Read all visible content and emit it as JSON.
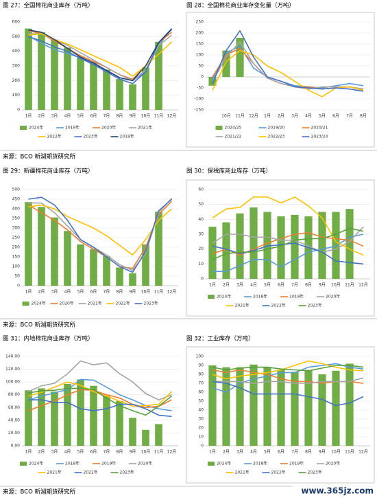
{
  "chart_data": [
    {
      "type": "combo",
      "title": "图 27：全国棉花商业库存（万吨）",
      "categories": [
        "1月",
        "2月",
        "3月",
        "4月",
        "5月",
        "6月",
        "7月",
        "8月",
        "9月",
        "10月",
        "11月",
        "12月"
      ],
      "ylim": [
        0,
        600
      ],
      "yticks": [
        0,
        100,
        200,
        300,
        400,
        500,
        600
      ],
      "grid": true,
      "series": [
        {
          "name": "2024年",
          "kind": "bar",
          "color": "#70ad47",
          "values": [
            555,
            530,
            480,
            425,
            365,
            330,
            275,
            210,
            175,
            290,
            465,
            null
          ]
        },
        {
          "name": "2019年",
          "kind": "line",
          "color": "#5b9bd5",
          "values": [
            505,
            455,
            410,
            385,
            355,
            310,
            270,
            220,
            200,
            260,
            440,
            555
          ]
        },
        {
          "name": "2020年",
          "kind": "line",
          "color": "#ed7d31",
          "values": [
            540,
            520,
            470,
            420,
            370,
            330,
            290,
            240,
            210,
            300,
            460,
            530
          ]
        },
        {
          "name": "2021年",
          "kind": "line",
          "color": "#a5a5a5",
          "values": [
            520,
            520,
            480,
            440,
            390,
            340,
            290,
            240,
            200,
            270,
            440,
            510
          ]
        },
        {
          "name": "2022年",
          "kind": "line",
          "color": "#ffc000",
          "values": [
            510,
            520,
            480,
            450,
            410,
            370,
            330,
            290,
            230,
            300,
            380,
            465
          ]
        },
        {
          "name": "2023年",
          "kind": "line",
          "color": "#4472c4",
          "values": [
            500,
            470,
            430,
            400,
            350,
            310,
            260,
            210,
            180,
            260,
            460,
            555
          ]
        },
        {
          "name": "2018年",
          "kind": "line",
          "color": "#264478",
          "values": [
            545,
            530,
            480,
            420,
            360,
            320,
            270,
            220,
            200,
            300,
            460,
            550
          ]
        }
      ]
    },
    {
      "type": "combo",
      "title": "图 28：全国棉花商业库存变化量（万吨）",
      "categories": [
        null,
        "10月",
        "11月",
        "12月",
        "1月",
        "2月",
        "3月",
        "4月",
        "5月",
        "6月",
        "7月",
        "8月"
      ],
      "ylim": [
        -150,
        250
      ],
      "yticks": [
        -150,
        -100,
        -50,
        0,
        50,
        100,
        150,
        200,
        250
      ],
      "grid": true,
      "series": [
        {
          "name": "2024/25",
          "kind": "bar",
          "color": "#70ad47",
          "values": [
            -40,
            120,
            178,
            null,
            null,
            null,
            null,
            null,
            null,
            null,
            null,
            null
          ]
        },
        {
          "name": "2019/20",
          "kind": "line",
          "color": "#5b9bd5",
          "values": [
            -10,
            110,
            140,
            40,
            0,
            -20,
            -40,
            -45,
            -50,
            -40,
            -30,
            -40
          ]
        },
        {
          "name": "2020/21",
          "kind": "line",
          "color": "#ed7d31",
          "values": [
            0,
            100,
            130,
            60,
            -5,
            -30,
            -45,
            -45,
            -55,
            -50,
            -45,
            -60
          ]
        },
        {
          "name": "2021/22",
          "kind": "line",
          "color": "#a5a5a5",
          "values": [
            -20,
            90,
            160,
            60,
            -5,
            -30,
            -45,
            -55,
            -45,
            -45,
            -45,
            -55
          ]
        },
        {
          "name": "2022/23",
          "kind": "line",
          "color": "#ffc000",
          "values": [
            -60,
            70,
            120,
            100,
            50,
            20,
            -20,
            -60,
            -90,
            -50,
            -45,
            -60
          ]
        },
        {
          "name": "2023/24",
          "kind": "line",
          "color": "#4472c4",
          "values": [
            -30,
            120,
            210,
            90,
            0,
            -20,
            -45,
            -50,
            -55,
            -50,
            -55,
            -65
          ]
        }
      ]
    },
    {
      "type": "combo",
      "title": "图 29：新疆棉花商业库存（万吨）",
      "categories": [
        "1月",
        "2月",
        "3月",
        "4月",
        "5月",
        "6月",
        "7月",
        "8月",
        "9月",
        "10月",
        "11月",
        "12月"
      ],
      "ylim": [
        0,
        500
      ],
      "yticks": [
        0,
        50,
        100,
        150,
        200,
        250,
        300,
        350,
        400,
        450,
        500
      ],
      "grid": true,
      "series": [
        {
          "name": "2024年",
          "kind": "bar",
          "color": "#70ad47",
          "values": [
            435,
            410,
            355,
            285,
            215,
            190,
            155,
            95,
            65,
            215,
            385,
            null
          ]
        },
        {
          "name": "2020年",
          "kind": "line",
          "color": "#ed7d31",
          "values": [
            420,
            380,
            340,
            290,
            230,
            190,
            150,
            100,
            90,
            200,
            370,
            440
          ]
        },
        {
          "name": "2021年",
          "kind": "line",
          "color": "#a5a5a5",
          "values": [
            430,
            430,
            380,
            310,
            240,
            200,
            160,
            110,
            80,
            170,
            380,
            455
          ]
        },
        {
          "name": "2022年",
          "kind": "line",
          "color": "#ffc000",
          "values": [
            410,
            420,
            400,
            360,
            330,
            300,
            260,
            210,
            160,
            240,
            340,
            400
          ]
        },
        {
          "name": "2023年",
          "kind": "line",
          "color": "#4472c4",
          "values": [
            450,
            460,
            420,
            340,
            240,
            200,
            150,
            100,
            70,
            180,
            390,
            450
          ]
        }
      ]
    },
    {
      "type": "combo",
      "title": "图 30：保税库商业库存（万吨）",
      "categories": [
        "1月",
        "2月",
        "3月",
        "4月",
        "5月",
        "6月",
        "7月",
        "8月",
        "9月",
        "10月",
        "11月",
        "12月"
      ],
      "ylim": [
        0,
        60
      ],
      "yticks": [
        0,
        10,
        20,
        30,
        40,
        50,
        60
      ],
      "grid": true,
      "series": [
        {
          "name": "2024年",
          "kind": "bar",
          "color": "#70ad47",
          "values": [
            35,
            38,
            44,
            48,
            45,
            42,
            43,
            42,
            45,
            45,
            47,
            null
          ]
        },
        {
          "name": "2018年",
          "kind": "line",
          "color": "#5b9bd5",
          "values": [
            5,
            5,
            9,
            13,
            13,
            8,
            13,
            18,
            20,
            22,
            28,
            30
          ]
        },
        {
          "name": "2019年",
          "kind": "line",
          "color": "#ed7d31",
          "values": [
            17,
            20,
            16,
            20,
            24,
            27,
            30,
            31,
            28,
            27,
            26,
            22
          ]
        },
        {
          "name": "2020年",
          "kind": "line",
          "color": "#a5a5a5",
          "values": [
            24,
            30,
            30,
            28,
            28,
            26,
            26,
            22,
            18,
            20,
            25,
            35
          ]
        },
        {
          "name": "2021年",
          "kind": "line",
          "color": "#ffc000",
          "values": [
            41,
            47,
            48,
            55,
            55,
            51,
            55,
            49,
            41,
            25,
            20,
            16
          ]
        },
        {
          "name": "2022年",
          "kind": "line",
          "color": "#4472c4",
          "values": [
            22,
            20,
            17,
            19,
            22,
            23,
            24,
            21,
            18,
            12,
            11,
            10
          ]
        },
        {
          "name": "2023年",
          "kind": "line",
          "color": "#5aa03c",
          "values": [
            13,
            17,
            18,
            18,
            20,
            22,
            26,
            27,
            27,
            30,
            34,
            32
          ]
        }
      ]
    },
    {
      "type": "combo",
      "title": "图 31：内地棉花商业库存（万吨）",
      "categories": [
        "1月",
        "2月",
        "3月",
        "4月",
        "5月",
        "6月",
        "7月",
        "8月",
        "9月",
        "10月",
        "11月",
        "12月"
      ],
      "ylim": [
        0,
        140
      ],
      "yticks": [
        {
          "value": 0,
          "label": "0.00"
        },
        {
          "value": 20,
          "label": "20.00"
        },
        {
          "value": 40,
          "label": "40.00"
        },
        {
          "value": 60,
          "label": "60.00"
        },
        {
          "value": 80,
          "label": "80.00"
        },
        {
          "value": 100,
          "label": "100.00"
        },
        {
          "value": 120,
          "label": "120.00"
        },
        {
          "value": 140,
          "label": "140.00"
        }
      ],
      "grid": true,
      "series": [
        {
          "name": "2024年",
          "kind": "bar",
          "color": "#70ad47",
          "values": [
            87,
            90,
            85,
            97,
            104,
            94,
            78,
            70,
            44,
            25,
            34,
            null
          ]
        },
        {
          "name": "2018年",
          "kind": "line",
          "color": "#5b9bd5",
          "values": [
            72,
            78,
            83,
            88,
            104,
            103,
            92,
            80,
            72,
            63,
            58,
            55
          ]
        },
        {
          "name": "2019年",
          "kind": "line",
          "color": "#ed7d31",
          "values": [
            55,
            63,
            70,
            80,
            88,
            87,
            80,
            75,
            65,
            60,
            62,
            72
          ]
        },
        {
          "name": "2020年",
          "kind": "line",
          "color": "#a5a5a5",
          "values": [
            85,
            94,
            98,
            113,
            133,
            127,
            130,
            113,
            100,
            82,
            72,
            80
          ]
        },
        {
          "name": "2021年",
          "kind": "line",
          "color": "#ffc000",
          "values": [
            78,
            84,
            92,
            100,
            95,
            85,
            78,
            70,
            62,
            63,
            65,
            85
          ]
        },
        {
          "name": "2022年",
          "kind": "line",
          "color": "#4472c4",
          "values": [
            72,
            72,
            68,
            68,
            58,
            55,
            58,
            65,
            65,
            58,
            48,
            46
          ]
        },
        {
          "name": "2023年",
          "kind": "line",
          "color": "#5aa03c",
          "values": [
            83,
            86,
            87,
            90,
            90,
            88,
            75,
            63,
            55,
            48,
            62,
            78
          ]
        }
      ]
    },
    {
      "type": "combo",
      "title": "图 32：工业库存（万吨）",
      "categories": [
        "1月",
        "2月",
        "3月",
        "4月",
        "5月",
        "6月",
        "7月",
        "8月",
        "9月",
        "10月",
        "11月",
        "12月"
      ],
      "ylim": [
        0,
        100
      ],
      "yticks": [
        0,
        10,
        20,
        30,
        40,
        50,
        60,
        70,
        80,
        90,
        100
      ],
      "grid": true,
      "series": [
        {
          "name": "2024年",
          "kind": "bar",
          "color": "#70ad47",
          "values": [
            90,
            88,
            88,
            91,
            88,
            85,
            83,
            85,
            80,
            84,
            92,
            null
          ]
        },
        {
          "name": "2018年",
          "kind": "line",
          "color": "#5b9bd5",
          "values": [
            65,
            60,
            70,
            75,
            78,
            82,
            82,
            88,
            90,
            92,
            88,
            86
          ]
        },
        {
          "name": "2019年",
          "kind": "line",
          "color": "#ed7d31",
          "values": [
            85,
            82,
            85,
            82,
            80,
            75,
            72,
            72,
            70,
            72,
            72,
            70
          ]
        },
        {
          "name": "2020年",
          "kind": "line",
          "color": "#a5a5a5",
          "values": [
            72,
            72,
            72,
            70,
            72,
            72,
            70,
            70,
            72,
            72,
            72,
            76
          ]
        },
        {
          "name": "2021年",
          "kind": "line",
          "color": "#ffc000",
          "values": [
            80,
            75,
            78,
            80,
            82,
            85,
            90,
            95,
            92,
            88,
            85,
            84
          ]
        },
        {
          "name": "2022年",
          "kind": "line",
          "color": "#4472c4",
          "values": [
            72,
            70,
            65,
            58,
            58,
            58,
            58,
            55,
            52,
            45,
            48,
            55
          ]
        },
        {
          "name": "2023年",
          "kind": "line",
          "color": "#5aa03c",
          "values": [
            88,
            85,
            87,
            88,
            88,
            86,
            85,
            84,
            87,
            90,
            90,
            88
          ]
        }
      ]
    }
  ],
  "sources": [
    "来源：BCO 新湖期货研究所",
    "来源：BCO 新湖期货研究所",
    "来源：BCO 新湖期货研究所"
  ],
  "watermark": "www.365jz.com"
}
